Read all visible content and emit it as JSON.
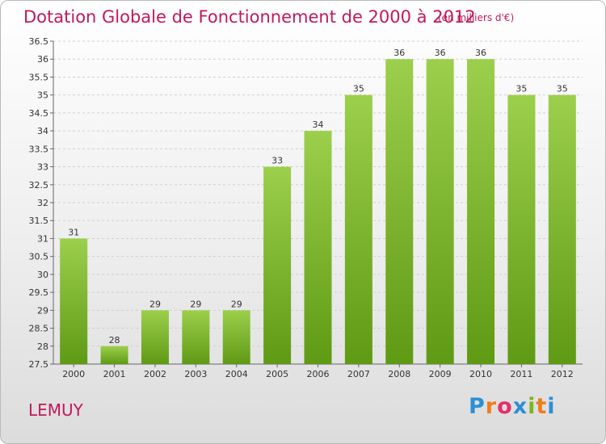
{
  "header": {
    "title": "Dotation Globale de Fonctionnement de 2000 à 2012",
    "subtitle": "(en milliers d'€)"
  },
  "footer": {
    "place": "LEMUY",
    "logo": {
      "letters": [
        "P",
        "r",
        "o",
        "x",
        "i",
        "t",
        "i"
      ],
      "colors": [
        "#2d8fd5",
        "#ef7d1a",
        "#e62d6e",
        "#2d8fd5",
        "#7cb51e",
        "#ef7d1a",
        "#2d8fd5"
      ]
    }
  },
  "chart_data": {
    "type": "bar",
    "categories": [
      "2000",
      "2001",
      "2002",
      "2003",
      "2004",
      "2005",
      "2006",
      "2007",
      "2008",
      "2009",
      "2010",
      "2011",
      "2012"
    ],
    "values": [
      31,
      28,
      29,
      29,
      29,
      33,
      34,
      35,
      36,
      36,
      36,
      35,
      35
    ],
    "data_labels": [
      "31",
      "28",
      "29",
      "29",
      "29",
      "33",
      "34",
      "35",
      "36",
      "36",
      "36",
      "35",
      "35"
    ],
    "ylim": [
      27.5,
      36.5
    ],
    "yticks": [
      "27.5",
      "28",
      "28.5",
      "29",
      "29.5",
      "30",
      "30.5",
      "31",
      "31.5",
      "32",
      "32.5",
      "33",
      "33.5",
      "34",
      "34.5",
      "35",
      "35.5",
      "36",
      "36.5"
    ],
    "grid": true,
    "bar_color_top": "#9ccf4c",
    "bar_color_bottom": "#5f9a14"
  }
}
